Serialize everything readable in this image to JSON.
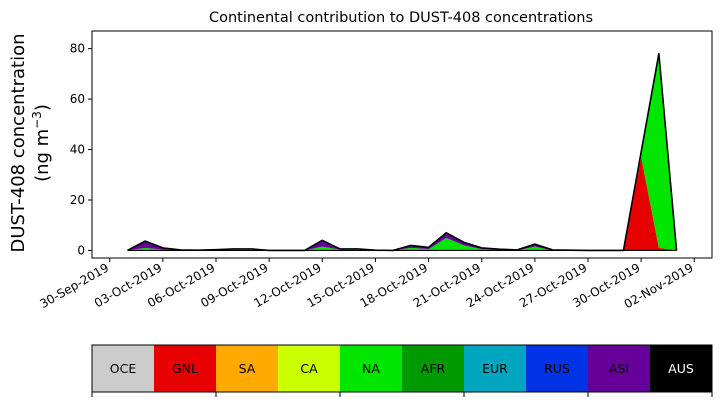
{
  "chart_data": {
    "type": "area",
    "stacked": true,
    "title": "Continental contribution to DUST-408 concentrations",
    "ylabel_line1": "DUST-408 concentration",
    "ylabel_line2": "(ng m",
    "ylabel_sup": "−3",
    "ylabel_close": ")",
    "ylim": [
      -3,
      87
    ],
    "yticks": [
      0,
      20,
      40,
      60,
      80
    ],
    "xlim": [
      "2019-09-29",
      "2019-11-03"
    ],
    "xticks": [
      "2019-09-30",
      "2019-10-03",
      "2019-10-06",
      "2019-10-09",
      "2019-10-12",
      "2019-10-15",
      "2019-10-18",
      "2019-10-21",
      "2019-10-24",
      "2019-10-27",
      "2019-10-30",
      "2019-11-02"
    ],
    "xtick_labels": [
      "30-Sep-2019",
      "03-Oct-2019",
      "06-Oct-2019",
      "09-Oct-2019",
      "12-Oct-2019",
      "15-Oct-2019",
      "18-Oct-2019",
      "21-Oct-2019",
      "24-Oct-2019",
      "27-Oct-2019",
      "30-Oct-2019",
      "02-Nov-2019"
    ],
    "x": [
      "2019-10-01",
      "2019-10-02",
      "2019-10-03",
      "2019-10-04",
      "2019-10-05",
      "2019-10-06",
      "2019-10-07",
      "2019-10-08",
      "2019-10-09",
      "2019-10-10",
      "2019-10-11",
      "2019-10-12",
      "2019-10-13",
      "2019-10-14",
      "2019-10-15",
      "2019-10-16",
      "2019-10-17",
      "2019-10-18",
      "2019-10-19",
      "2019-10-20",
      "2019-10-21",
      "2019-10-22",
      "2019-10-23",
      "2019-10-24",
      "2019-10-25",
      "2019-10-26",
      "2019-10-27",
      "2019-10-28",
      "2019-10-29",
      "2019-10-30",
      "2019-10-31",
      "2019-11-01"
    ],
    "series": [
      {
        "name": "OCE",
        "color": "#cccccc",
        "values": [
          0,
          0,
          0,
          0,
          0,
          0,
          0,
          0,
          0,
          0,
          0,
          0,
          0,
          0,
          0,
          0,
          0,
          0,
          0,
          0,
          0,
          0,
          0,
          0,
          0,
          0,
          0,
          0,
          0,
          0,
          0,
          0
        ]
      },
      {
        "name": "GNL",
        "color": "#e60000",
        "values": [
          0,
          0,
          0,
          0,
          0,
          0,
          0,
          0,
          0,
          0,
          0,
          0,
          0,
          0,
          0,
          0,
          0,
          0,
          0,
          0,
          0,
          0,
          0,
          0,
          0,
          0,
          0,
          0,
          0,
          37,
          1,
          0
        ]
      },
      {
        "name": "SA",
        "color": "#ffaa00",
        "values": [
          0,
          0,
          0,
          0,
          0,
          0,
          0.1,
          0.2,
          0,
          0,
          0,
          0,
          0,
          0.1,
          0,
          0,
          0,
          0,
          0,
          0,
          0,
          0,
          0,
          0,
          0,
          0,
          0,
          0,
          0,
          0,
          0,
          0
        ]
      },
      {
        "name": "CA",
        "color": "#ccff00",
        "values": [
          0,
          0,
          0,
          0,
          0,
          0,
          0.2,
          0.2,
          0,
          0,
          0,
          0,
          0.2,
          0.2,
          0,
          0,
          0,
          0,
          0,
          0,
          0,
          0,
          0,
          0,
          0,
          0,
          0,
          0,
          0,
          0,
          0,
          0
        ]
      },
      {
        "name": "NA",
        "color": "#00e600",
        "values": [
          0,
          1,
          0.3,
          0,
          0,
          0,
          0.1,
          0.2,
          0,
          0,
          0,
          1.5,
          0.1,
          0.1,
          0,
          0,
          1,
          0.5,
          5,
          2,
          0.5,
          0.2,
          0,
          1.5,
          0,
          0,
          0,
          0,
          0,
          2,
          76,
          0
        ]
      },
      {
        "name": "AFR",
        "color": "#009900",
        "values": [
          0,
          0,
          0,
          0,
          0,
          0,
          0,
          0,
          0,
          0,
          0,
          0,
          0,
          0,
          0,
          0,
          0,
          0,
          0,
          0,
          0,
          0,
          0,
          0,
          0,
          0,
          0,
          0,
          0,
          0,
          0,
          0
        ]
      },
      {
        "name": "EUR",
        "color": "#00a6bf",
        "values": [
          0,
          0,
          0,
          0,
          0,
          0,
          0,
          0,
          0,
          0,
          0,
          0,
          0,
          0,
          0,
          0,
          0,
          0,
          0,
          0,
          0,
          0,
          0,
          0,
          0,
          0,
          0,
          0,
          0,
          0,
          0,
          0
        ]
      },
      {
        "name": "RUS",
        "color": "#0033e6",
        "values": [
          0,
          0,
          0,
          0,
          0,
          0,
          0,
          0,
          0,
          0,
          0,
          0,
          0,
          0,
          0,
          0,
          0,
          0,
          0,
          0,
          0,
          0,
          0,
          0,
          0,
          0,
          0,
          0,
          0,
          0,
          0,
          0
        ]
      },
      {
        "name": "ASI",
        "color": "#660099",
        "values": [
          0,
          2.7,
          0.7,
          0.2,
          0.1,
          0.3,
          0.2,
          0,
          0,
          0,
          0,
          2.5,
          0.3,
          0.2,
          0.1,
          0,
          1,
          0.7,
          2,
          1.2,
          0.5,
          0.3,
          0.2,
          1,
          0.2,
          0.1,
          0,
          0,
          0,
          0,
          1,
          0
        ]
      },
      {
        "name": "AUS",
        "color": "#000000",
        "values": [
          0,
          0,
          0,
          0,
          0,
          0,
          0,
          0,
          0,
          0,
          0,
          0,
          0,
          0,
          0,
          0,
          0,
          0,
          0,
          0,
          0,
          0,
          0,
          0,
          0,
          0,
          0,
          0,
          0,
          0,
          0,
          0
        ]
      }
    ],
    "legend_placement": "bottom",
    "grid": false
  }
}
